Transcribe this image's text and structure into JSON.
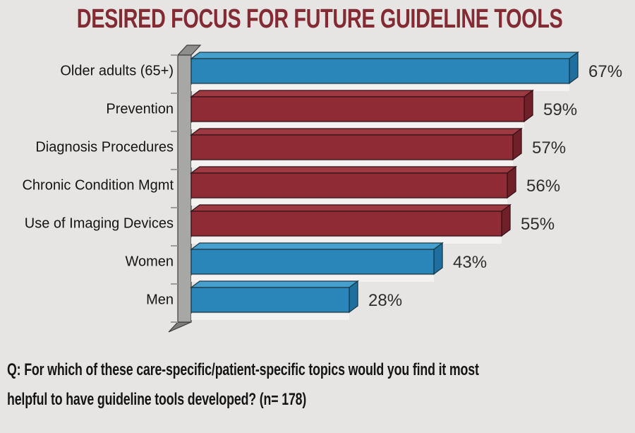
{
  "title": "DESIRED FOCUS FOR FUTURE GUIDELINE TOOLS",
  "title_color": "#832A33",
  "question": {
    "line1": "Q: For which of these care-specific/patient-specific topics would you find it most",
    "line2": "helpful to have guideline tools developed?  (n= 178)"
  },
  "chart_data": {
    "type": "bar",
    "style": "3d-horizontal-bar",
    "orientation": "horizontal",
    "title": "DESIRED FOCUS FOR FUTURE GUIDELINE TOOLS",
    "categories": [
      "Older adults (65+)",
      "Prevention",
      "Diagnosis Procedures",
      "Chronic Condition Mgmt",
      "Use of Imaging Devices",
      "Women",
      "Men"
    ],
    "values": [
      67,
      59,
      57,
      56,
      55,
      43,
      28
    ],
    "value_labels": [
      "67%",
      "59%",
      "57%",
      "56%",
      "55%",
      "43%",
      "28%"
    ],
    "bar_colors": [
      "blue",
      "red",
      "red",
      "red",
      "red",
      "blue",
      "blue"
    ],
    "palette": {
      "blue": {
        "front": "#2A85B9",
        "top": "#46A0CD",
        "side": "#1F6F9E",
        "stroke": "#1C3B46"
      },
      "red": {
        "front": "#8E2B35",
        "top": "#9D3941",
        "side": "#6F2028",
        "stroke": "#351318"
      }
    },
    "axis_wall_color": "#A7A7A6",
    "axis_wall_top_color": "#8E8E8D",
    "axis_wall_foot_color": "#7C7C7B",
    "tick_color": "#9B9B9B",
    "category_label_color": "#141414",
    "value_label_color": "#2E2E2E",
    "xlim": [
      0,
      100
    ],
    "grid": false,
    "legend": false
  }
}
